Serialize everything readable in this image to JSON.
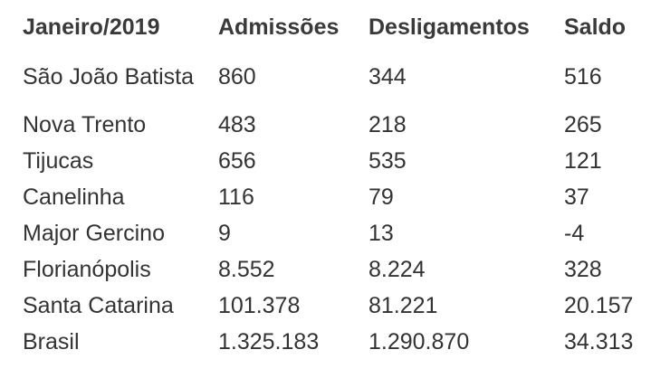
{
  "table": {
    "headers": [
      "Janeiro/2019",
      "Admissões",
      "Desligamentos",
      "Saldo"
    ],
    "rows": [
      {
        "local": "São João Batista",
        "admissoes": "860",
        "desligamentos": "344",
        "saldo": "516"
      },
      {
        "local": "Nova Trento",
        "admissoes": "483",
        "desligamentos": "218",
        "saldo": "265"
      },
      {
        "local": "Tijucas",
        "admissoes": "656",
        "desligamentos": "535",
        "saldo": "121"
      },
      {
        "local": "Canelinha",
        "admissoes": "116",
        "desligamentos": "79",
        "saldo": "37"
      },
      {
        "local": "Major Gercino",
        "admissoes": "9",
        "desligamentos": "13",
        "saldo": "-4"
      },
      {
        "local": "Florianópolis",
        "admissoes": "8.552",
        "desligamentos": "8.224",
        "saldo": "328"
      },
      {
        "local": "Santa Catarina",
        "admissoes": "101.378",
        "desligamentos": "81.221",
        "saldo": "20.157"
      },
      {
        "local": "Brasil",
        "admissoes": "1.325.183",
        "desligamentos": "1.290.870",
        "saldo": "34.313"
      }
    ]
  }
}
